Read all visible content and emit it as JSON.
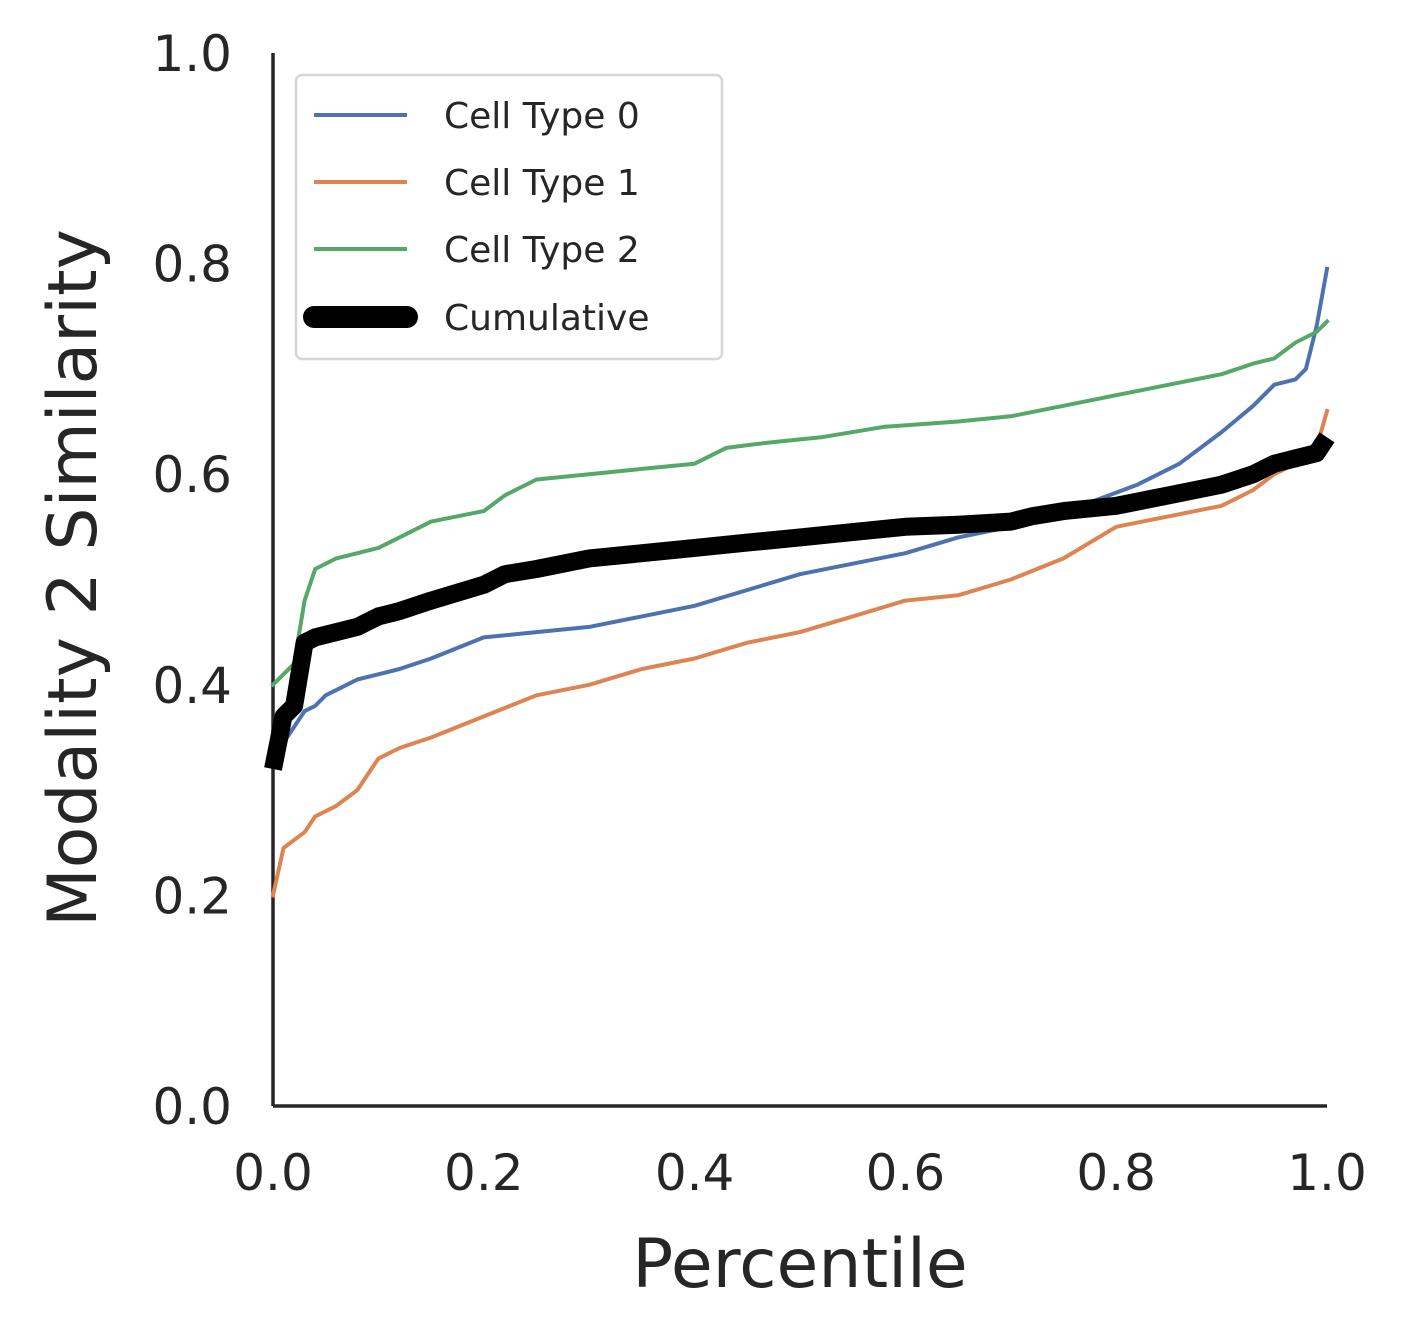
{
  "chart_data": {
    "type": "line",
    "title": "",
    "xlabel": "Percentile",
    "ylabel": "Modality 2 Similarity",
    "xlim": [
      0.0,
      1.0
    ],
    "ylim": [
      0.0,
      1.0
    ],
    "xticks": [
      "0.0",
      "0.2",
      "0.4",
      "0.6",
      "0.8",
      "1.0"
    ],
    "yticks": [
      "0.0",
      "0.2",
      "0.4",
      "0.6",
      "0.8",
      "1.0"
    ],
    "grid": false,
    "legend_position": "top-left",
    "series": [
      {
        "name": "Cell Type 0",
        "color": "#4c72b0",
        "x": [
          0.0,
          0.02,
          0.03,
          0.04,
          0.05,
          0.07,
          0.08,
          0.1,
          0.12,
          0.15,
          0.2,
          0.25,
          0.3,
          0.35,
          0.4,
          0.45,
          0.5,
          0.55,
          0.6,
          0.65,
          0.7,
          0.75,
          0.78,
          0.82,
          0.86,
          0.9,
          0.93,
          0.95,
          0.97,
          0.98,
          0.99,
          1.0
        ],
        "y": [
          0.33,
          0.36,
          0.375,
          0.38,
          0.39,
          0.4,
          0.405,
          0.41,
          0.415,
          0.425,
          0.445,
          0.45,
          0.455,
          0.465,
          0.475,
          0.49,
          0.505,
          0.515,
          0.525,
          0.54,
          0.55,
          0.56,
          0.575,
          0.59,
          0.61,
          0.64,
          0.665,
          0.685,
          0.69,
          0.7,
          0.74,
          0.795
        ]
      },
      {
        "name": "Cell Type 1",
        "color": "#dd8452",
        "x": [
          0.0,
          0.01,
          0.03,
          0.04,
          0.06,
          0.08,
          0.1,
          0.12,
          0.15,
          0.2,
          0.25,
          0.3,
          0.35,
          0.4,
          0.45,
          0.5,
          0.55,
          0.6,
          0.65,
          0.7,
          0.75,
          0.8,
          0.85,
          0.9,
          0.93,
          0.95,
          0.97,
          0.99,
          1.0
        ],
        "y": [
          0.2,
          0.245,
          0.26,
          0.275,
          0.285,
          0.3,
          0.33,
          0.34,
          0.35,
          0.37,
          0.39,
          0.4,
          0.415,
          0.425,
          0.44,
          0.45,
          0.465,
          0.48,
          0.485,
          0.5,
          0.52,
          0.55,
          0.56,
          0.57,
          0.585,
          0.6,
          0.61,
          0.625,
          0.66
        ]
      },
      {
        "name": "Cell Type 2",
        "color": "#55a868",
        "x": [
          0.0,
          0.02,
          0.03,
          0.04,
          0.06,
          0.08,
          0.1,
          0.12,
          0.15,
          0.2,
          0.22,
          0.25,
          0.3,
          0.35,
          0.4,
          0.43,
          0.47,
          0.52,
          0.58,
          0.65,
          0.7,
          0.75,
          0.8,
          0.85,
          0.9,
          0.93,
          0.95,
          0.97,
          0.99,
          1.0
        ],
        "y": [
          0.4,
          0.42,
          0.48,
          0.51,
          0.52,
          0.525,
          0.53,
          0.54,
          0.555,
          0.565,
          0.58,
          0.595,
          0.6,
          0.605,
          0.61,
          0.625,
          0.63,
          0.635,
          0.645,
          0.65,
          0.655,
          0.665,
          0.675,
          0.685,
          0.695,
          0.705,
          0.71,
          0.725,
          0.735,
          0.745
        ]
      },
      {
        "name": "Cumulative",
        "color": "#000000",
        "x": [
          0.0,
          0.01,
          0.02,
          0.03,
          0.04,
          0.06,
          0.08,
          0.1,
          0.12,
          0.15,
          0.2,
          0.22,
          0.25,
          0.3,
          0.35,
          0.4,
          0.45,
          0.5,
          0.55,
          0.6,
          0.65,
          0.7,
          0.72,
          0.75,
          0.8,
          0.85,
          0.9,
          0.93,
          0.95,
          0.97,
          0.99,
          1.0
        ],
        "y": [
          0.32,
          0.37,
          0.38,
          0.44,
          0.445,
          0.45,
          0.455,
          0.465,
          0.47,
          0.48,
          0.495,
          0.505,
          0.51,
          0.52,
          0.525,
          0.53,
          0.535,
          0.54,
          0.545,
          0.55,
          0.552,
          0.555,
          0.56,
          0.565,
          0.57,
          0.58,
          0.59,
          0.6,
          0.61,
          0.615,
          0.62,
          0.635
        ]
      }
    ]
  }
}
